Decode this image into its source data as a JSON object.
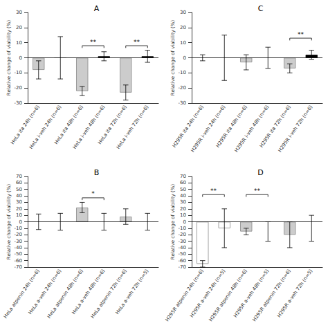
{
  "chart_data": [
    {
      "type": "bar",
      "title": "A",
      "ylabel": "Relative change of viability (%)",
      "categories": [
        "HeLa ita 24h (n=6)",
        "HeLa i-veh 24h (n=6)",
        "HeLa ita 48h (n=6)",
        "HeLa i-veh 48h (n=6)",
        "HeLa ita 72h (n=6)",
        "HeLa i-veh 72h (n=6)"
      ],
      "values": [
        -8,
        0,
        -22,
        1,
        -23,
        1
      ],
      "errors": [
        6,
        14,
        3,
        3,
        5,
        4
      ],
      "colors": [
        "#cccccc",
        "none",
        "#cccccc",
        "#000000",
        "#cccccc",
        "#000000"
      ],
      "ylim": [
        -30,
        30
      ],
      "yticks": [
        -30,
        -20,
        -10,
        0,
        10,
        20,
        30
      ],
      "grid": false,
      "annotations": [
        {
          "text": "**",
          "from": "HeLa ita 48h (n=6)",
          "to": "HeLa i-veh 48h (n=6)",
          "y": 8
        },
        {
          "text": "**",
          "from": "HeLa ita 72h (n=6)",
          "to": "HeLa i-veh 72h (n=6)",
          "y": 8
        }
      ]
    },
    {
      "type": "bar",
      "title": "C",
      "ylabel": "Relative change of viability (%)",
      "categories": [
        "H295R ita 24h (n=6)",
        "H295R i-veh 24h (n=6)",
        "H295R ita 48h (n=6)",
        "H295R i-veh 48h (n=6)",
        "H295R ita 72h (n=6)",
        "H295R i-veh 72h (n=6)"
      ],
      "values": [
        0,
        0,
        -3,
        0,
        -7,
        2
      ],
      "errors": [
        2,
        15,
        5,
        7,
        3,
        3
      ],
      "colors": [
        null,
        null,
        "#cccccc",
        null,
        "#cccccc",
        "#000000"
      ],
      "ylim": [
        -30,
        30
      ],
      "yticks": [
        -30,
        -20,
        -10,
        0,
        10,
        20,
        30
      ],
      "grid": false,
      "annotations": [
        {
          "text": "**",
          "from": "H295R ita 72h (n=6)",
          "to": "H295R i-veh 72h (n=6)",
          "y": 13
        }
      ]
    },
    {
      "type": "bar",
      "title": "B",
      "ylabel": "Relative change of viability (%)",
      "categories": [
        "HeLa atpenin 24h (n=6)",
        "HeLa a-veh 24h (n=6)",
        "HeLa atpenin 48h (n=6)",
        "HeLa a-veh 48h (n=6)",
        "HeLa atpenin 72h (n=6)",
        "HeLa a-veh 72h (n=5)"
      ],
      "values": [
        0,
        0,
        22,
        0,
        8,
        0
      ],
      "errors": [
        12,
        13,
        8,
        13,
        12,
        13
      ],
      "colors": [
        null,
        null,
        "#cccccc",
        null,
        "#cccccc",
        null
      ],
      "ylim": [
        -70,
        70
      ],
      "yticks": [
        -70,
        -60,
        -50,
        -40,
        -30,
        -20,
        -10,
        0,
        10,
        20,
        30,
        40,
        50,
        60,
        70
      ],
      "grid": false,
      "annotations": [
        {
          "text": "*",
          "from": "HeLa atpenin 48h (n=6)",
          "to": "HeLa a-veh 48h (n=6)",
          "y": 37
        }
      ]
    },
    {
      "type": "bar",
      "title": "D",
      "ylabel": "Relative change of viability (%)",
      "categories": [
        "H295R atpenin 24h (n=6)",
        "H295R a-veh 24h (n=5)",
        "H295R atpenin 48h (n=6)",
        "H295R a-veh 48h (n=5)",
        "H295R atpenin 72h (n=6)",
        "H295R a-veh 72h (n=5)"
      ],
      "values": [
        -65,
        -10,
        -15,
        -15,
        -20,
        -10
      ],
      "errors": [
        5,
        30,
        5,
        15,
        20,
        20
      ],
      "colors": [
        "none",
        "none",
        "#cccccc",
        null,
        "#cccccc",
        null
      ],
      "ylim": [
        -70,
        70
      ],
      "yticks": [
        -70,
        -60,
        -50,
        -40,
        -30,
        -20,
        -10,
        0,
        10,
        20,
        30,
        40,
        50,
        60,
        70
      ],
      "grid": false,
      "annotations": [
        {
          "text": "**",
          "from": "H295R atpenin 24h (n=6)",
          "to": "H295R a-veh 24h (n=5)",
          "y": 42
        },
        {
          "text": "**",
          "from": "H295R atpenin 48h (n=6)",
          "to": "H295R a-veh 48h (n=5)",
          "y": 42
        }
      ]
    }
  ]
}
